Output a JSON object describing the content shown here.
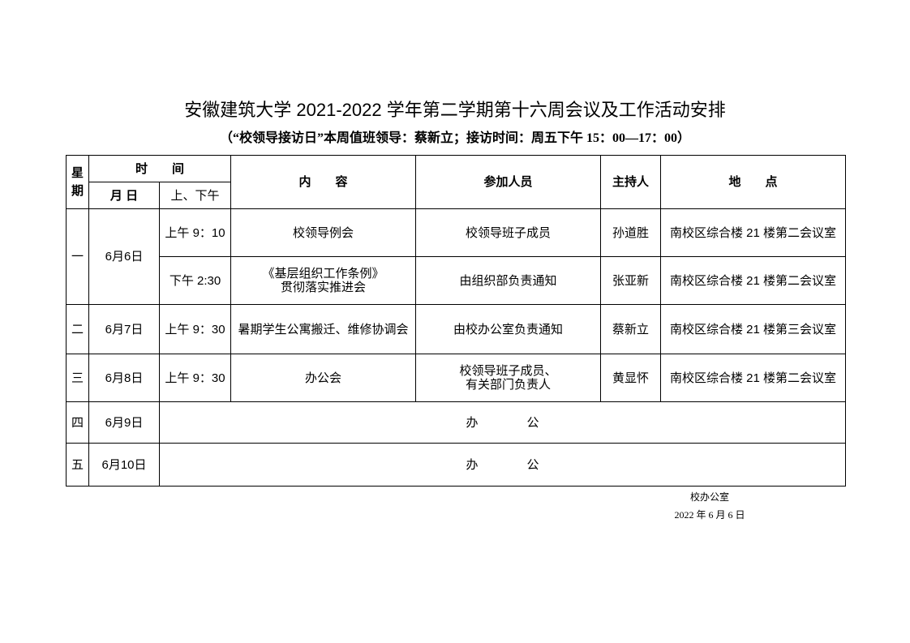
{
  "title": "安徽建筑大学 2021-2022 学年第二学期第十六周会议及工作活动安排",
  "subtitle": "（“校领导接访日”本周值班领导：蔡新立；接访时间：周五下午 15：00—17：00）",
  "headers": {
    "weekday": "星期",
    "time": "时　　间",
    "date": "月 日",
    "ampm": "上、下午",
    "content": "内　　容",
    "participants": "参加人员",
    "host": "主持人",
    "location": "地　　点"
  },
  "rows": [
    {
      "weekday": "一",
      "date": "6月6日",
      "items": [
        {
          "time": "上午 9：10",
          "content": "校领导例会",
          "participants": "校领导班子成员",
          "host": "孙道胜",
          "location": "南校区综合楼 21 楼第二会议室"
        },
        {
          "time": "下午 2:30",
          "content": "《基层组织工作条例》\n贯彻落实推进会",
          "participants": "由组织部负责通知",
          "host": "张亚新",
          "location": "南校区综合楼 21 楼第二会议室"
        }
      ]
    },
    {
      "weekday": "二",
      "date": "6月7日",
      "items": [
        {
          "time": "上午 9：30",
          "content": "暑期学生公寓搬迁、维修协调会",
          "participants": "由校办公室负责通知",
          "host": "蔡新立",
          "location": "南校区综合楼 21 楼第三会议室"
        }
      ]
    },
    {
      "weekday": "三",
      "date": "6月8日",
      "items": [
        {
          "time": "上午 9：30",
          "content": "办公会",
          "participants": "校领导班子成员、\n有关部门负责人",
          "host": "黄显怀",
          "location": "南校区综合楼 21 楼第二会议室"
        }
      ]
    },
    {
      "weekday": "四",
      "date": "6月9日",
      "note": "办　　　　公"
    },
    {
      "weekday": "五",
      "date": "6月10日",
      "note": "办　　　　公"
    }
  ],
  "footer": {
    "office": "校办公室",
    "date": "2022 年 6 月 6 日"
  }
}
